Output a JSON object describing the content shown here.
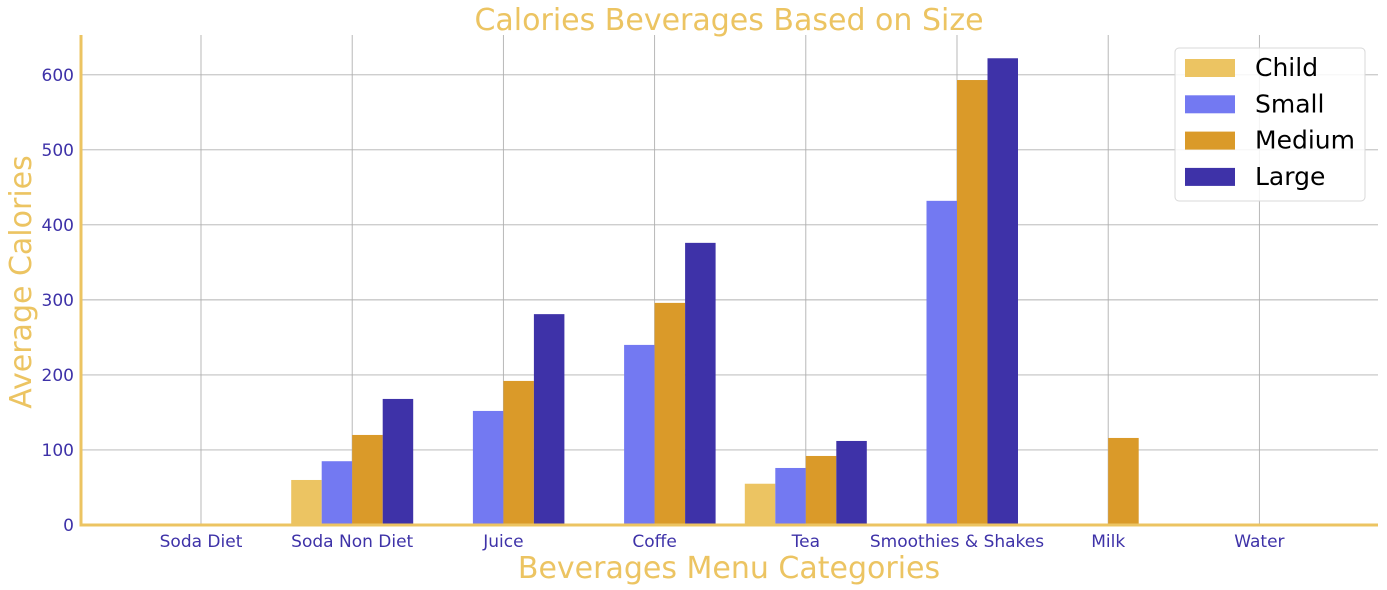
{
  "chart_data": {
    "type": "bar",
    "title": "Calories Beverages Based on Size",
    "xlabel": "Beverages Menu Categories",
    "ylabel": "Average Calories",
    "categories": [
      "Soda Diet",
      "Soda Non Diet",
      "Juice",
      "Coffe",
      "Tea",
      "Smoothies & Shakes",
      "Milk",
      "Water"
    ],
    "series": [
      {
        "name": "Child",
        "color": "#ECC462",
        "values": [
          0,
          60,
          0,
          0,
          55,
          0,
          0,
          0
        ]
      },
      {
        "name": "Small",
        "color": "#7379F2",
        "values": [
          0,
          85,
          152,
          240,
          76,
          432,
          0,
          0
        ]
      },
      {
        "name": "Medium",
        "color": "#DA9A29",
        "values": [
          0,
          120,
          192,
          296,
          92,
          593,
          116,
          0
        ]
      },
      {
        "name": "Large",
        "color": "#3E32A8",
        "values": [
          0,
          168,
          281,
          376,
          112,
          622,
          0,
          0
        ]
      }
    ],
    "ylim": [
      0,
      653
    ],
    "yticks": [
      0,
      100,
      200,
      300,
      400,
      500,
      600
    ],
    "grid": true,
    "legend_position": "top-right",
    "colors": {
      "title": "#ECC462",
      "axis_label": "#ECC462",
      "tick_label": "#3E32A8",
      "axis_line": "#ECC462",
      "grid": "#b0b0b0"
    }
  }
}
